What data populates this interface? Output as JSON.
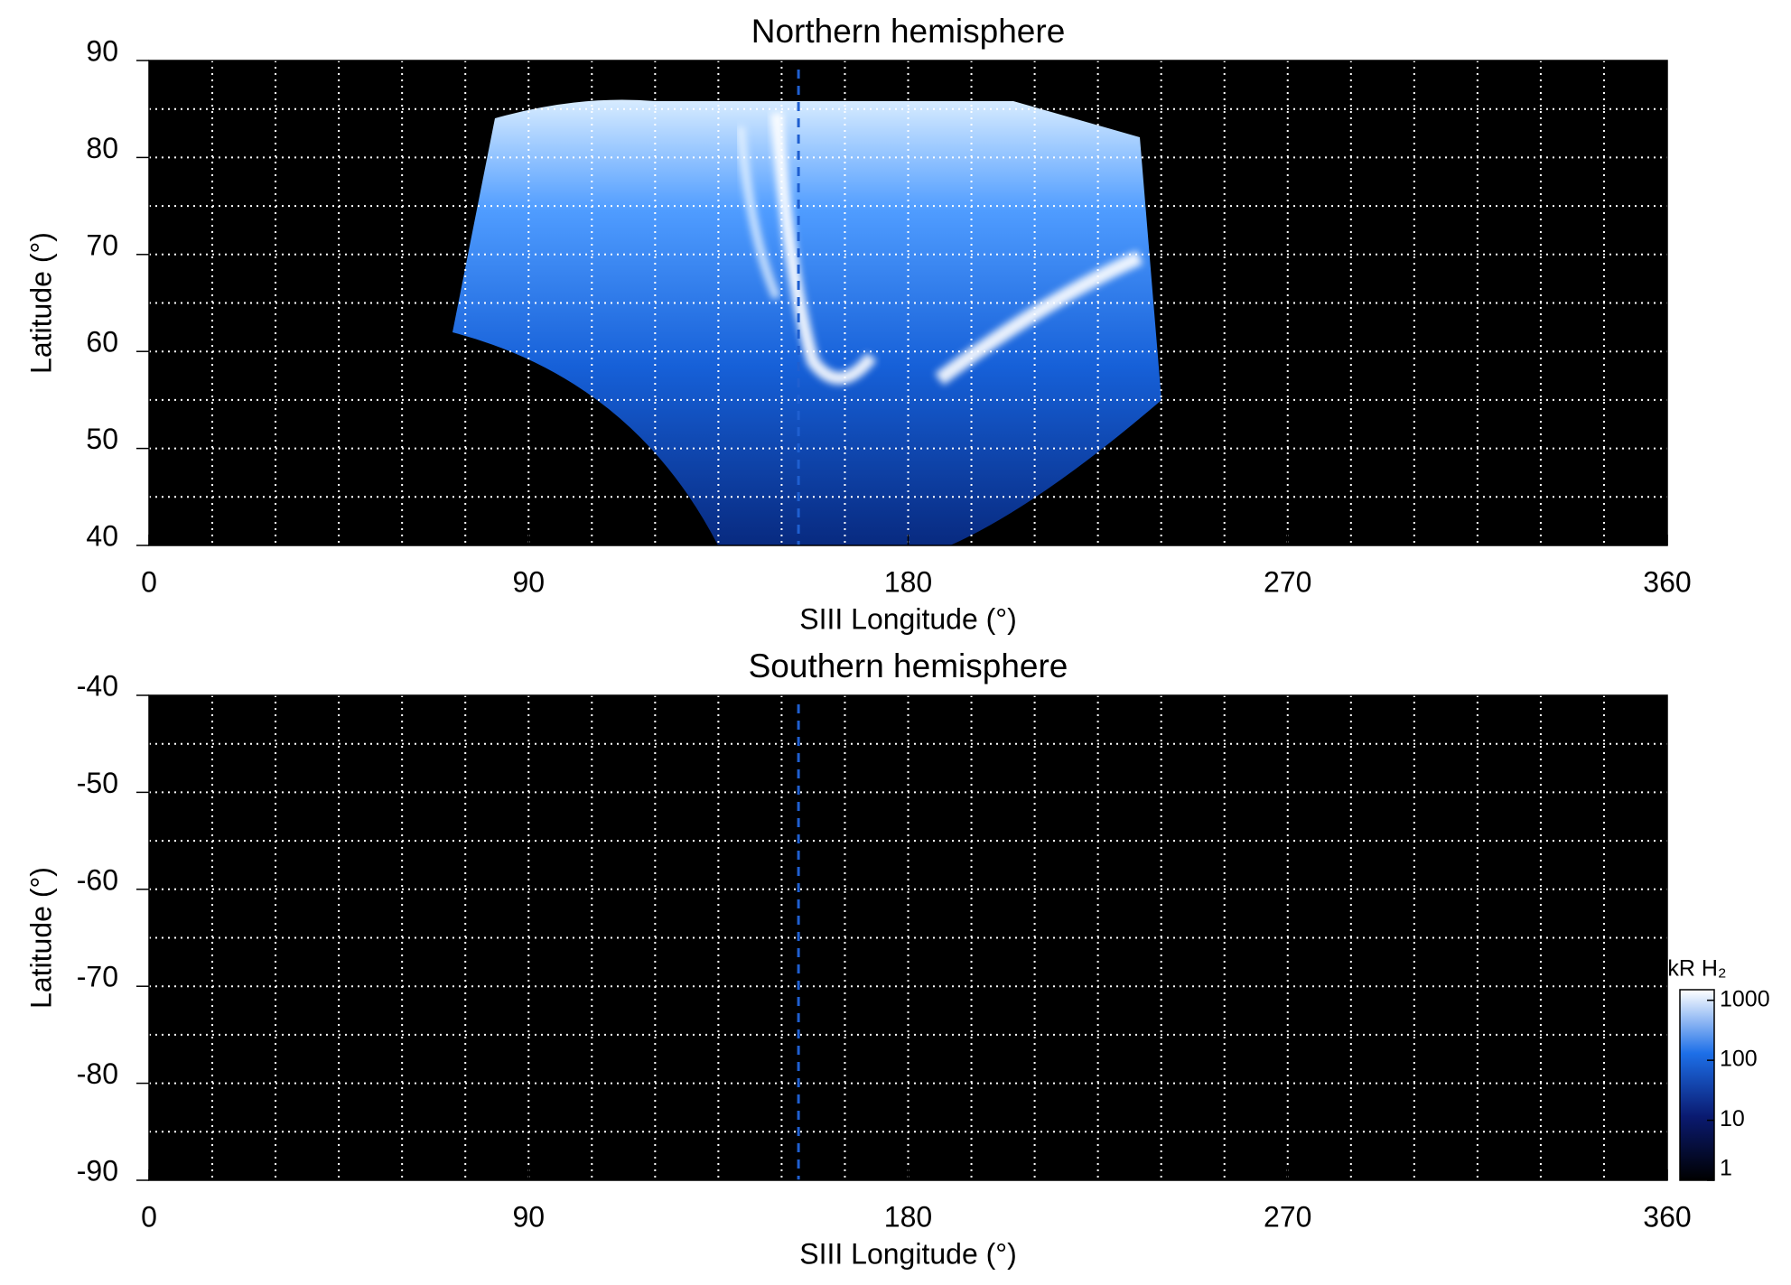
{
  "chart_data": [
    {
      "type": "heatmap",
      "title": "Northern hemisphere",
      "xlabel": "SIII Longitude (°)",
      "ylabel": "Latitude (°)",
      "xlim": [
        0,
        360
      ],
      "xticks": [
        0,
        90,
        180,
        270,
        360
      ],
      "ylim": [
        40,
        90
      ],
      "yticks": [
        40,
        50,
        60,
        70,
        80,
        90
      ],
      "grid_step": [
        15,
        5
      ],
      "grid_color": "#ffffff",
      "background": "#000000",
      "vline": 154,
      "vline_color": "#1f5fd0"
    },
    {
      "type": "heatmap",
      "title": "Southern hemisphere",
      "xlabel": "SIII Longitude (°)",
      "ylabel": "Latitude (°)",
      "xlim": [
        0,
        360
      ],
      "xticks": [
        0,
        90,
        180,
        270,
        360
      ],
      "ylim": [
        -90,
        -40
      ],
      "yticks": [
        -90,
        -80,
        -70,
        -60,
        -50,
        -40
      ],
      "grid_step": [
        15,
        5
      ],
      "grid_color": "#ffffff",
      "background": "#000000",
      "vline": 154,
      "vline_color": "#1f5fd0",
      "colorbar": {
        "label": "kR H₂",
        "log": true,
        "lim": [
          1,
          1500
        ],
        "ticks": [
          1,
          10,
          100,
          1000
        ],
        "colors": [
          "#000000",
          "#0a1a70",
          "#1d6fe8",
          "#ffffff"
        ]
      }
    }
  ]
}
